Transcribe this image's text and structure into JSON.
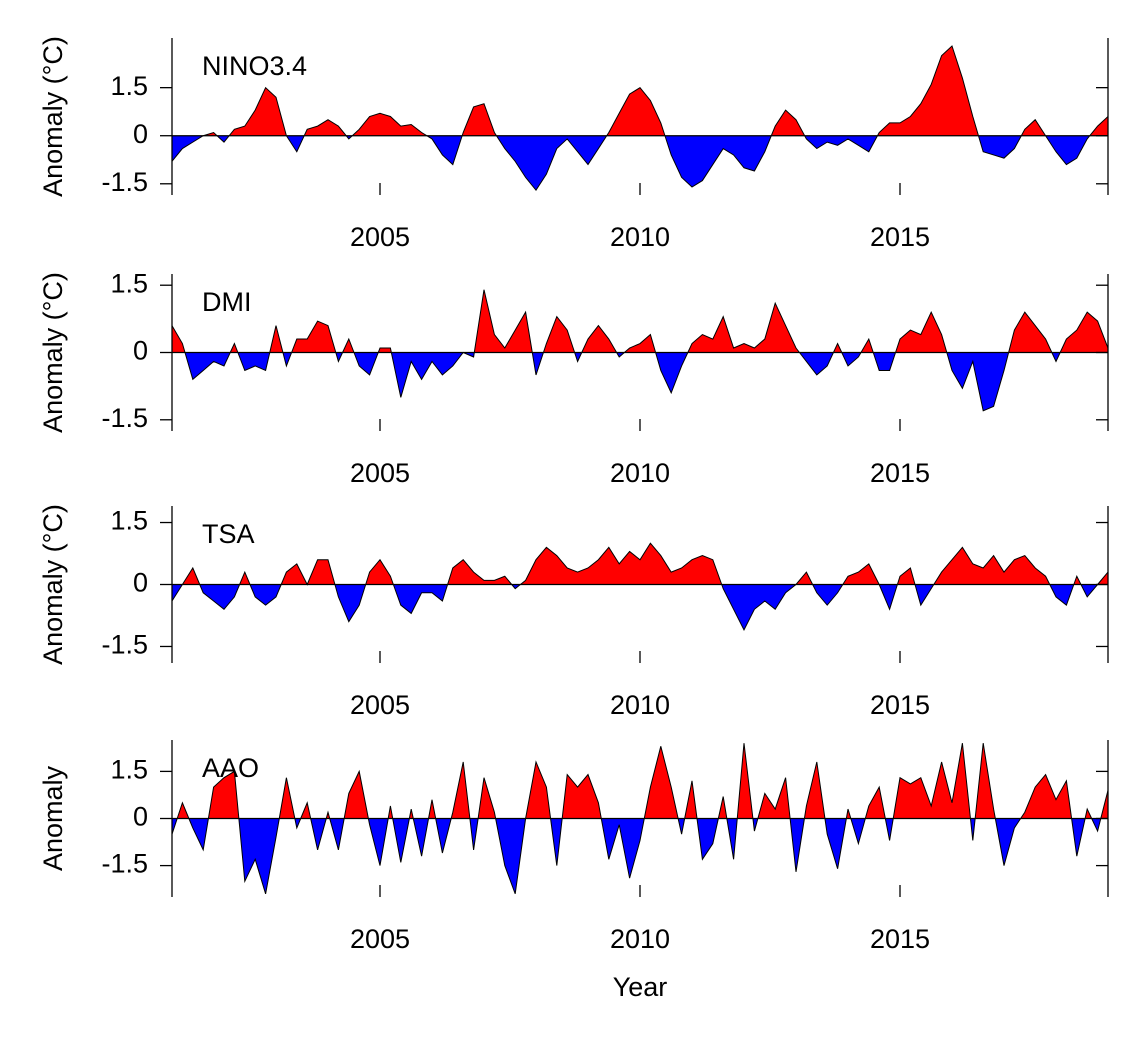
{
  "chart_data": [
    {
      "type": "area",
      "title": "NINO3.4",
      "y_label": "Anomaly (°C)",
      "pos_color": "#ff0000",
      "neg_color": "#0000ff",
      "xlim": [
        2001,
        2019
      ],
      "xticks": [
        2005,
        2010,
        2015
      ],
      "ylim": [
        -1.85,
        3.05
      ],
      "yticks": [
        -1.5,
        0,
        1.5
      ],
      "x": [
        2001,
        2001.2,
        2001.4,
        2001.6,
        2001.8,
        2002,
        2002.2,
        2002.4,
        2002.6,
        2002.8,
        2003,
        2003.2,
        2003.4,
        2003.6,
        2003.8,
        2004,
        2004.2,
        2004.4,
        2004.6,
        2004.8,
        2005,
        2005.2,
        2005.4,
        2005.6,
        2005.8,
        2006,
        2006.2,
        2006.4,
        2006.6,
        2006.8,
        2007,
        2007.2,
        2007.4,
        2007.6,
        2007.8,
        2008,
        2008.2,
        2008.4,
        2008.6,
        2008.8,
        2009,
        2009.2,
        2009.4,
        2009.6,
        2009.8,
        2010,
        2010.2,
        2010.4,
        2010.6,
        2010.8,
        2011,
        2011.2,
        2011.4,
        2011.6,
        2011.8,
        2012,
        2012.2,
        2012.4,
        2012.6,
        2012.8,
        2013,
        2013.2,
        2013.4,
        2013.6,
        2013.8,
        2014,
        2014.2,
        2014.4,
        2014.6,
        2014.8,
        2015,
        2015.2,
        2015.4,
        2015.6,
        2015.8,
        2016,
        2016.2,
        2016.4,
        2016.6,
        2016.8,
        2017,
        2017.2,
        2017.4,
        2017.6,
        2017.8,
        2018,
        2018.2,
        2018.4,
        2018.6,
        2018.8,
        2019
      ],
      "values": [
        -0.8,
        -0.4,
        -0.2,
        0.0,
        0.1,
        -0.2,
        0.2,
        0.3,
        0.8,
        1.5,
        1.2,
        0.0,
        -0.5,
        0.2,
        0.3,
        0.5,
        0.3,
        -0.1,
        0.2,
        0.6,
        0.7,
        0.6,
        0.3,
        0.35,
        0.1,
        -0.1,
        -0.6,
        -0.9,
        0.1,
        0.9,
        1.0,
        0.1,
        -0.4,
        -0.8,
        -1.3,
        -1.7,
        -1.2,
        -0.4,
        -0.1,
        -0.5,
        -0.9,
        -0.4,
        0.1,
        0.7,
        1.3,
        1.5,
        1.1,
        0.4,
        -0.6,
        -1.3,
        -1.6,
        -1.4,
        -0.9,
        -0.4,
        -0.6,
        -1.0,
        -1.1,
        -0.5,
        0.3,
        0.8,
        0.5,
        -0.1,
        -0.4,
        -0.2,
        -0.3,
        -0.1,
        -0.3,
        -0.5,
        0.1,
        0.4,
        0.4,
        0.6,
        1.0,
        1.6,
        2.5,
        2.8,
        1.8,
        0.6,
        -0.5,
        -0.6,
        -0.7,
        -0.4,
        0.2,
        0.5,
        0.0,
        -0.5,
        -0.9,
        -0.7,
        -0.1,
        0.3,
        0.6
      ]
    },
    {
      "type": "area",
      "title": "DMI",
      "y_label": "Anomaly (°C)",
      "pos_color": "#ff0000",
      "neg_color": "#0000ff",
      "xlim": [
        2001,
        2019
      ],
      "xticks": [
        2005,
        2010,
        2015
      ],
      "ylim": [
        -1.75,
        1.75
      ],
      "yticks": [
        -1.5,
        0,
        1.5
      ],
      "x": [
        2001,
        2001.2,
        2001.4,
        2001.6,
        2001.8,
        2002,
        2002.2,
        2002.4,
        2002.6,
        2002.8,
        2003,
        2003.2,
        2003.4,
        2003.6,
        2003.8,
        2004,
        2004.2,
        2004.4,
        2004.6,
        2004.8,
        2005,
        2005.2,
        2005.4,
        2005.6,
        2005.8,
        2006,
        2006.2,
        2006.4,
        2006.6,
        2006.8,
        2007,
        2007.2,
        2007.4,
        2007.6,
        2007.8,
        2008,
        2008.2,
        2008.4,
        2008.6,
        2008.8,
        2009,
        2009.2,
        2009.4,
        2009.6,
        2009.8,
        2010,
        2010.2,
        2010.4,
        2010.6,
        2010.8,
        2011,
        2011.2,
        2011.4,
        2011.6,
        2011.8,
        2012,
        2012.2,
        2012.4,
        2012.6,
        2012.8,
        2013,
        2013.2,
        2013.4,
        2013.6,
        2013.8,
        2014,
        2014.2,
        2014.4,
        2014.6,
        2014.8,
        2015,
        2015.2,
        2015.4,
        2015.6,
        2015.8,
        2016,
        2016.2,
        2016.4,
        2016.6,
        2016.8,
        2017,
        2017.2,
        2017.4,
        2017.6,
        2017.8,
        2018,
        2018.2,
        2018.4,
        2018.6,
        2018.8,
        2019
      ],
      "values": [
        0.6,
        0.2,
        -0.6,
        -0.4,
        -0.2,
        -0.3,
        0.2,
        -0.4,
        -0.3,
        -0.4,
        0.6,
        -0.3,
        0.3,
        0.3,
        0.7,
        0.6,
        -0.2,
        0.3,
        -0.3,
        -0.5,
        0.1,
        0.1,
        -1.0,
        -0.2,
        -0.6,
        -0.2,
        -0.5,
        -0.3,
        0.0,
        -0.1,
        1.4,
        0.4,
        0.1,
        0.5,
        0.9,
        -0.5,
        0.2,
        0.8,
        0.5,
        -0.2,
        0.3,
        0.6,
        0.3,
        -0.1,
        0.1,
        0.2,
        0.4,
        -0.4,
        -0.9,
        -0.3,
        0.2,
        0.4,
        0.3,
        0.8,
        0.1,
        0.2,
        0.1,
        0.3,
        1.1,
        0.6,
        0.1,
        -0.2,
        -0.5,
        -0.3,
        0.2,
        -0.3,
        -0.1,
        0.3,
        -0.4,
        -0.4,
        0.3,
        0.5,
        0.4,
        0.9,
        0.4,
        -0.4,
        -0.8,
        -0.2,
        -1.3,
        -1.2,
        -0.4,
        0.5,
        0.9,
        0.6,
        0.3,
        -0.2,
        0.3,
        0.5,
        0.9,
        0.7,
        0.1
      ]
    },
    {
      "type": "area",
      "title": "TSA",
      "y_label": "Anomaly (°C)",
      "pos_color": "#ff0000",
      "neg_color": "#0000ff",
      "xlim": [
        2001,
        2019
      ],
      "xticks": [
        2005,
        2010,
        2015
      ],
      "ylim": [
        -1.9,
        1.9
      ],
      "yticks": [
        -1.5,
        0,
        1.5
      ],
      "x": [
        2001,
        2001.2,
        2001.4,
        2001.6,
        2001.8,
        2002,
        2002.2,
        2002.4,
        2002.6,
        2002.8,
        2003,
        2003.2,
        2003.4,
        2003.6,
        2003.8,
        2004,
        2004.2,
        2004.4,
        2004.6,
        2004.8,
        2005,
        2005.2,
        2005.4,
        2005.6,
        2005.8,
        2006,
        2006.2,
        2006.4,
        2006.6,
        2006.8,
        2007,
        2007.2,
        2007.4,
        2007.6,
        2007.8,
        2008,
        2008.2,
        2008.4,
        2008.6,
        2008.8,
        2009,
        2009.2,
        2009.4,
        2009.6,
        2009.8,
        2010,
        2010.2,
        2010.4,
        2010.6,
        2010.8,
        2011,
        2011.2,
        2011.4,
        2011.6,
        2011.8,
        2012,
        2012.2,
        2012.4,
        2012.6,
        2012.8,
        2013,
        2013.2,
        2013.4,
        2013.6,
        2013.8,
        2014,
        2014.2,
        2014.4,
        2014.6,
        2014.8,
        2015,
        2015.2,
        2015.4,
        2015.6,
        2015.8,
        2016,
        2016.2,
        2016.4,
        2016.6,
        2016.8,
        2017,
        2017.2,
        2017.4,
        2017.6,
        2017.8,
        2018,
        2018.2,
        2018.4,
        2018.6,
        2018.8,
        2019
      ],
      "values": [
        -0.4,
        0.0,
        0.4,
        -0.2,
        -0.4,
        -0.6,
        -0.3,
        0.3,
        -0.3,
        -0.5,
        -0.3,
        0.3,
        0.5,
        0.0,
        0.6,
        0.6,
        -0.3,
        -0.9,
        -0.5,
        0.3,
        0.6,
        0.2,
        -0.5,
        -0.7,
        -0.2,
        -0.2,
        -0.4,
        0.4,
        0.6,
        0.3,
        0.1,
        0.1,
        0.2,
        -0.1,
        0.1,
        0.6,
        0.9,
        0.7,
        0.4,
        0.3,
        0.4,
        0.6,
        0.9,
        0.5,
        0.8,
        0.6,
        1.0,
        0.7,
        0.3,
        0.4,
        0.6,
        0.7,
        0.6,
        -0.1,
        -0.6,
        -1.1,
        -0.6,
        -0.4,
        -0.6,
        -0.2,
        0.0,
        0.3,
        -0.2,
        -0.5,
        -0.2,
        0.2,
        0.3,
        0.5,
        0.0,
        -0.6,
        0.2,
        0.4,
        -0.5,
        -0.1,
        0.3,
        0.6,
        0.9,
        0.5,
        0.4,
        0.7,
        0.3,
        0.6,
        0.7,
        0.4,
        0.2,
        -0.3,
        -0.5,
        0.2,
        -0.3,
        0.0,
        0.3
      ]
    },
    {
      "type": "area",
      "title": "AAO",
      "y_label": "Anomaly",
      "x_label": "Year",
      "pos_color": "#ff0000",
      "neg_color": "#0000ff",
      "xlim": [
        2001,
        2019
      ],
      "xticks": [
        2005,
        2010,
        2015
      ],
      "ylim": [
        -2.5,
        2.5
      ],
      "yticks": [
        -1.5,
        0,
        1.5
      ],
      "x": [
        2001,
        2001.2,
        2001.4,
        2001.6,
        2001.8,
        2002,
        2002.2,
        2002.4,
        2002.6,
        2002.8,
        2003,
        2003.2,
        2003.4,
        2003.6,
        2003.8,
        2004,
        2004.2,
        2004.4,
        2004.6,
        2004.8,
        2005,
        2005.2,
        2005.4,
        2005.6,
        2005.8,
        2006,
        2006.2,
        2006.4,
        2006.6,
        2006.8,
        2007,
        2007.2,
        2007.4,
        2007.6,
        2007.8,
        2008,
        2008.2,
        2008.4,
        2008.6,
        2008.8,
        2009,
        2009.2,
        2009.4,
        2009.6,
        2009.8,
        2010,
        2010.2,
        2010.4,
        2010.6,
        2010.8,
        2011,
        2011.2,
        2011.4,
        2011.6,
        2011.8,
        2012,
        2012.2,
        2012.4,
        2012.6,
        2012.8,
        2013,
        2013.2,
        2013.4,
        2013.6,
        2013.8,
        2014,
        2014.2,
        2014.4,
        2014.6,
        2014.8,
        2015,
        2015.2,
        2015.4,
        2015.6,
        2015.8,
        2016,
        2016.2,
        2016.4,
        2016.6,
        2016.8,
        2017,
        2017.2,
        2017.4,
        2017.6,
        2017.8,
        2018,
        2018.2,
        2018.4,
        2018.6,
        2018.8,
        2019
      ],
      "values": [
        -0.5,
        0.5,
        -0.3,
        -1.0,
        1.0,
        1.3,
        1.5,
        -2.0,
        -1.3,
        -2.4,
        -0.6,
        1.3,
        -0.3,
        0.5,
        -1.0,
        0.2,
        -1.0,
        0.8,
        1.5,
        -0.2,
        -1.5,
        0.4,
        -1.4,
        0.3,
        -1.2,
        0.6,
        -1.1,
        0.2,
        1.8,
        -1.0,
        1.3,
        0.2,
        -1.5,
        -2.4,
        0.0,
        1.8,
        1.0,
        -1.5,
        1.4,
        1.0,
        1.4,
        0.5,
        -1.3,
        -0.2,
        -1.9,
        -0.7,
        1.0,
        2.3,
        1.0,
        -0.5,
        1.2,
        -1.3,
        -0.8,
        0.7,
        -1.3,
        2.4,
        -0.4,
        0.8,
        0.3,
        1.3,
        -1.7,
        0.4,
        1.8,
        -0.5,
        -1.6,
        0.3,
        -0.8,
        0.4,
        1.0,
        -0.7,
        1.3,
        1.1,
        1.3,
        0.4,
        1.8,
        0.5,
        2.4,
        -0.7,
        2.4,
        0.3,
        -1.5,
        -0.3,
        0.2,
        1.0,
        1.4,
        0.6,
        1.2,
        -1.2,
        0.3,
        -0.4,
        0.9
      ]
    }
  ]
}
